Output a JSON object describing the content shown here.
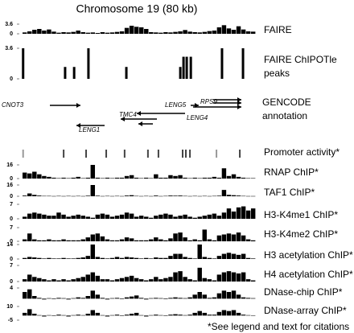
{
  "title": "Chromosome 19 (80 kb)",
  "footnote": "*See legend and text for citations",
  "annotation": {
    "label_lines": [
      "GENCODE",
      "annotation"
    ],
    "genes": [
      "CNOT3",
      "LENG1",
      "TMC4",
      "LENG4",
      "LENG5",
      "RPS9"
    ]
  },
  "chart_data": [
    {
      "type": "bar",
      "label": "FAIRE",
      "ylim": [
        0,
        3.6
      ],
      "yticks": [
        0,
        3.6
      ],
      "color": "#000",
      "values": [
        0.5,
        0.9,
        1.5,
        1.8,
        1.2,
        1.6,
        0.8,
        0.4,
        0.6,
        0.5,
        0.7,
        1.2,
        0.6,
        0.4,
        0.5,
        0.3,
        0.6,
        0.4,
        0.5,
        0.7,
        0.9,
        2.2,
        3,
        2.6,
        2.4,
        1.8,
        0.6,
        0.5,
        0.4,
        0.6,
        0.5,
        0.7,
        0.9,
        1.4,
        0.8,
        0.6,
        0.5,
        0.7,
        1,
        1.2,
        2.4,
        3.2,
        2,
        1.5,
        2.8,
        1.6,
        0.9,
        0.8
      ]
    },
    {
      "type": "peaks",
      "label_lines": [
        "FAIRE ChIPOTle",
        "peaks"
      ],
      "ylim": [
        0,
        3.6
      ],
      "yticks": [
        0,
        3.6
      ],
      "xlim": [
        0,
        80
      ],
      "color": "#000",
      "x": [
        0.2,
        14.6,
        17.7,
        22.6,
        35.6,
        54.1,
        55.2,
        56.3,
        57.7,
        68.4,
        75.6
      ],
      "values": [
        3.6,
        1.4,
        1.4,
        3.6,
        1.4,
        1.4,
        2.6,
        2.6,
        2.6,
        3.6,
        3.6
      ]
    },
    {
      "type": "event",
      "label": "Promoter activity*",
      "xlim": [
        0,
        80
      ],
      "x": [
        0.2,
        14.1,
        21.8,
        28.7,
        35.0,
        43.0,
        46.6,
        54.9,
        56.0,
        57.4,
        66.5,
        74.5
      ],
      "colors": [
        "#999",
        "#444",
        "#444",
        "#444",
        "#444",
        "#444",
        "#444",
        "#444",
        "#444",
        "#444",
        "#999",
        "#444"
      ]
    },
    {
      "type": "bar",
      "label": "RNAP ChIP*",
      "ylim": [
        0,
        16
      ],
      "yticks": [
        0,
        16
      ],
      "color": "#000",
      "values": [
        7,
        6,
        8,
        5,
        3,
        2,
        1,
        0.5,
        1,
        0.5,
        1,
        2,
        0.5,
        1,
        16,
        1,
        0.5,
        1,
        0.5,
        1,
        1,
        3,
        4,
        1,
        0.5,
        1,
        0.5,
        5,
        1,
        1,
        4,
        3,
        4,
        1,
        0.5,
        1,
        0.5,
        1,
        1,
        2,
        1,
        12,
        3,
        5,
        2,
        1,
        0.5,
        0.5
      ]
    },
    {
      "type": "bar",
      "label": "TAF1 ChIP*",
      "ylim": [
        0,
        16
      ],
      "yticks": [
        0,
        16
      ],
      "color": "#000",
      "values": [
        1,
        4,
        2,
        1,
        0.5,
        0.5,
        0.3,
        0.5,
        0.3,
        0.5,
        0.3,
        0.5,
        0.3,
        0.8,
        16,
        0.8,
        0.3,
        0.5,
        0.3,
        0.5,
        0.3,
        1,
        1.5,
        0.5,
        0.3,
        0.5,
        0.3,
        1,
        0.3,
        0.5,
        1,
        0.8,
        1,
        0.5,
        0.3,
        0.5,
        0.3,
        0.5,
        0.3,
        0.5,
        0.8,
        9,
        2,
        1.5,
        1,
        0.5,
        0.3,
        0.3
      ]
    },
    {
      "type": "bar",
      "label": "H3-K4me1 ChIP*",
      "ylim": [
        0,
        7
      ],
      "yticks": [
        0,
        7
      ],
      "color": "#000",
      "values": [
        1,
        2.5,
        3,
        2.5,
        2,
        1.5,
        1.5,
        3,
        2,
        1,
        1.5,
        2,
        1.5,
        1,
        0.5,
        2,
        2.5,
        2,
        1,
        1.5,
        2,
        3,
        2.5,
        1,
        1.5,
        1,
        0.5,
        1.5,
        2,
        2.5,
        2,
        1,
        1.5,
        2,
        1,
        0.5,
        1,
        1.5,
        2,
        2.5,
        1.5,
        3,
        5,
        3.5,
        5.5,
        6,
        4,
        5
      ]
    },
    {
      "type": "bar",
      "label": "H3-K4me2 ChIP*",
      "ylim": [
        0,
        7
      ],
      "yticks": [
        0,
        7
      ],
      "color": "#000",
      "values": [
        1,
        4,
        1,
        0.5,
        0.5,
        1,
        0.5,
        0.5,
        1,
        0.5,
        0.5,
        0.5,
        1,
        2,
        3.5,
        4,
        2.5,
        1,
        0.5,
        0.5,
        1,
        2,
        1.5,
        0.5,
        0.5,
        0.5,
        1,
        2,
        1,
        0.5,
        1.5,
        4,
        4.5,
        2,
        0.5,
        1,
        0.5,
        6,
        1,
        0.5,
        3,
        3.5,
        4,
        3.5,
        4.5,
        3,
        1,
        0.5
      ]
    },
    {
      "type": "bar",
      "label": "H3 acetylation ChIP*",
      "ylim": [
        0,
        14
      ],
      "yticks": [
        0,
        14
      ],
      "color": "#000",
      "values": [
        1,
        2,
        1.5,
        1,
        0.5,
        1,
        0.5,
        0.5,
        1,
        0.5,
        0.5,
        1,
        1.5,
        3,
        14,
        2,
        1,
        0.5,
        1,
        2,
        1,
        2,
        1.5,
        1,
        0.5,
        1,
        0.5,
        1.5,
        1,
        1,
        3,
        5,
        5,
        2,
        1,
        0.5,
        14,
        2,
        1,
        0.5,
        3,
        5,
        6,
        5,
        4,
        5,
        1,
        0.5
      ]
    },
    {
      "type": "bar",
      "label": "H4 acetylation ChIP*",
      "ylim": [
        0,
        7
      ],
      "yticks": [
        0,
        7
      ],
      "color": "#000",
      "values": [
        1,
        3,
        2,
        1.5,
        1,
        0.5,
        1,
        0.5,
        1,
        0.5,
        1,
        1.5,
        2,
        3,
        4,
        2.5,
        1,
        1,
        0.5,
        1,
        1.5,
        2,
        2.5,
        1.5,
        1,
        0.5,
        1,
        2,
        1,
        1.5,
        2,
        4,
        4.5,
        2,
        1,
        0.5,
        6,
        1.5,
        1,
        0.5,
        3,
        4,
        4.5,
        4,
        3.5,
        4,
        1,
        0.5
      ]
    },
    {
      "type": "bar",
      "label": "DNase-chip ChIP*",
      "ylim": [
        -2,
        4
      ],
      "yticks": [
        4
      ],
      "color": "#000",
      "values": [
        2.5,
        3.5,
        1,
        0.3,
        -0.3,
        0.2,
        -0.2,
        0.3,
        0.2,
        -0.3,
        0.2,
        0.5,
        0.3,
        1,
        3,
        1.5,
        0.3,
        -0.3,
        0.2,
        0.3,
        -0.2,
        0.5,
        0.8,
        1.2,
        0.3,
        -0.3,
        0.2,
        0.3,
        0.2,
        -0.2,
        0.3,
        0.5,
        0.3,
        0.2,
        0.5,
        1.5,
        2.5,
        1.5,
        0.3,
        0.5,
        2,
        3,
        2.5,
        3,
        1.5,
        0.5,
        0.3,
        0.2
      ]
    },
    {
      "type": "bar",
      "label": "DNase-array ChIP*",
      "ylim": [
        -5,
        10
      ],
      "yticks": [
        -5,
        10
      ],
      "color": "#000",
      "values": [
        3,
        7,
        2,
        0.5,
        -1,
        0.5,
        -0.5,
        1,
        0.5,
        -1,
        0.5,
        1,
        0.5,
        2,
        6,
        3,
        0.5,
        -1,
        0.5,
        1,
        -0.5,
        1,
        2,
        3,
        0.5,
        -1,
        0.5,
        1,
        0.5,
        -0.5,
        1,
        1.5,
        1,
        0.5,
        1,
        3,
        5,
        3,
        1,
        1,
        4,
        6,
        5,
        6,
        3,
        1,
        0.5,
        0.3
      ]
    }
  ]
}
